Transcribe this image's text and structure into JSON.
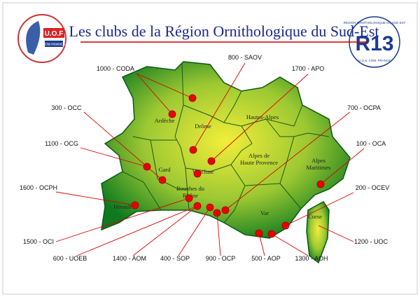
{
  "title": "Les clubs de la Région Ornithologique du Sud-Est",
  "logo_left": {
    "line1": "U.O.F",
    "line2": "COM FRANCE"
  },
  "logo_right": {
    "code": "R13",
    "top": "RÉGION ORNITHOLOGIQUE DU SUD EST",
    "bottom": "U.O.S. COM. FRANCE"
  },
  "departments": [
    "Ardèche",
    "Drôme",
    "Hautes-Alpes",
    "Alpes de Haute Provence",
    "Alpes Maritimes",
    "Gard",
    "Vaucluse",
    "Bouches du Rhône",
    "Hérault",
    "Var",
    "Corse"
  ],
  "clubs": [
    "1000 - CODA",
    "800 - SAOV",
    "1700 - APO",
    "300 - OCC",
    "700 - OCPA",
    "1100 - OCG",
    "100 - OCA",
    "1600 - OCPH",
    "200 - OCEV",
    "1500 - OCI",
    "1200 - UOC",
    "600 - UOEB",
    "1400 - AOM",
    "400 - SOP",
    "900 - OCP",
    "500 - AOP",
    "1300 - AOH"
  ]
}
